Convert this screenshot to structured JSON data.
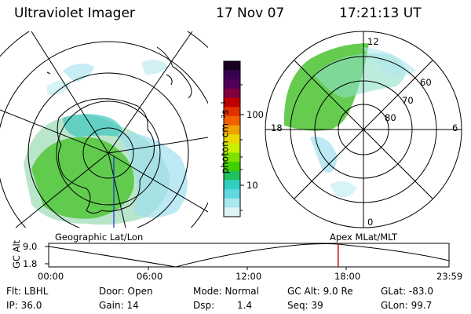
{
  "header": {
    "instrument": "Ultraviolet Imager",
    "date": "17 Nov 07",
    "time": "17:21:13 UT"
  },
  "colorbar": {
    "unit_label": "photon cm⁻²s⁻¹",
    "ticks": [
      "100",
      "10"
    ],
    "colors": [
      "#1a0020",
      "#3a0050",
      "#50005a",
      "#800040",
      "#c00000",
      "#e03000",
      "#f06000",
      "#f0a000",
      "#e8d800",
      "#c8f000",
      "#80e000",
      "#40d000",
      "#20c060",
      "#30d0c0",
      "#60d8e0",
      "#a8e8ee",
      "#e0f4f6"
    ]
  },
  "left_map": {
    "label": "Geographic Lat/Lon",
    "name": "left-map-geographic"
  },
  "right_map": {
    "label": "Apex  MLat/MLT",
    "mlt_labels": {
      "top": "12",
      "left": "18",
      "right": "6",
      "bottom": "0"
    },
    "mlat_labels": [
      "60",
      "70",
      "80"
    ]
  },
  "timeline": {
    "ylabel": "GC Alt",
    "ytick_high": "9.0",
    "ytick_low": "1.8",
    "xticks": [
      "00:00",
      "06:00",
      "12:00",
      "18:00",
      "23:59"
    ],
    "marker_time_fraction": 0.7231,
    "marker_color": "#d00000"
  },
  "status": {
    "flt": "Flt: LBHL",
    "ip": "IP: 36.0",
    "door": "Door: Open",
    "gain": "Gain: 14",
    "mode": "Mode: Normal",
    "dsp_label": "Dsp:",
    "dsp_value": "1.4",
    "gc_alt": "GC Alt: 9.0 Re",
    "seq": "Seq: 39",
    "glat": "GLat: -83.0",
    "glon": "GLon:  99.7"
  }
}
